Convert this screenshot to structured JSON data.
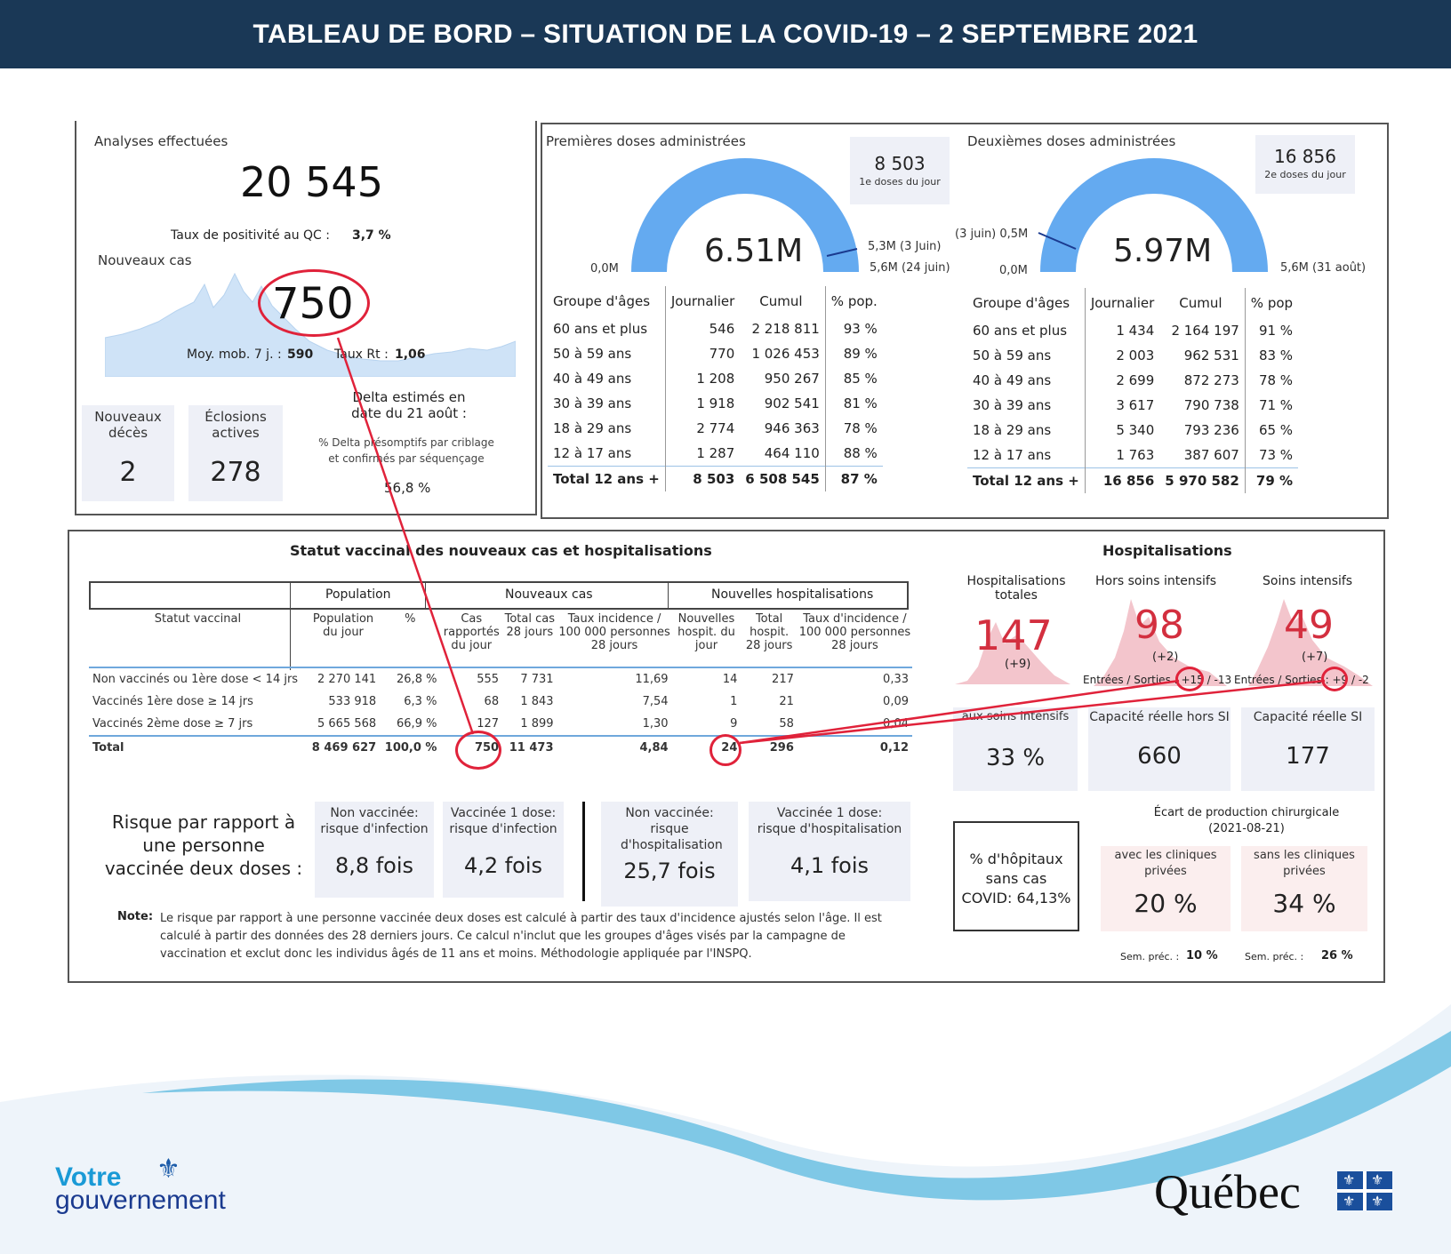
{
  "header": {
    "title": "TABLEAU DE BORD – SITUATION DE LA COVID-19 – 2 SEPTEMBRE 2021"
  },
  "colors": {
    "header_bg": "#1a3856",
    "gauge_blue": "#64aaf0",
    "alert_red": "#d32f3f",
    "annot_red": "#e0223a"
  },
  "analyses": {
    "title": "Analyses effectuées",
    "value": "20 545",
    "positivity_label": "Taux de positivité au QC :",
    "positivity_value": "3,7 %",
    "new_cases_label": "Nouveaux cas",
    "new_cases_value": "750",
    "mob_label": "Moy. mob. 7 j. :",
    "mob_value": "590",
    "rt_label": "Taux Rt :",
    "rt_value": "1,06",
    "deaths_label": "Nouveaux décès",
    "deaths_value": "2",
    "outbreaks_label": "Éclosions actives",
    "outbreaks_value": "278",
    "delta_title": "Delta estimés en date du 21 août :",
    "delta_sub": "% Delta présomptifs par criblage et confirmés par séquençage",
    "delta_value": "56,8 %"
  },
  "dose1": {
    "title": "Premières doses administrées",
    "total": "6.51M",
    "daily": "8 503",
    "daily_label": "1e doses du jour",
    "min_label": "0,0M",
    "marker1": "5,3M (3 Juin)",
    "marker2": "5,6M (24 juin)",
    "fill_fraction": 1.0,
    "columns": [
      "Groupe d'âges",
      "Journalier",
      "Cumul",
      "% pop."
    ],
    "rows": [
      [
        "60 ans et plus",
        "546",
        "2 218 811",
        "93 %"
      ],
      [
        "50 à 59 ans",
        "770",
        "1 026 453",
        "89 %"
      ],
      [
        "40 à 49 ans",
        "1 208",
        "950 267",
        "85 %"
      ],
      [
        "30 à 39 ans",
        "1 918",
        "902 541",
        "81 %"
      ],
      [
        "18 à 29 ans",
        "2 774",
        "946 363",
        "78 %"
      ],
      [
        "12 à 17 ans",
        "1 287",
        "464 110",
        "88 %"
      ]
    ],
    "total_row": [
      "Total 12 ans +",
      "8 503",
      "6 508 545",
      "87 %"
    ]
  },
  "dose2": {
    "title": "Deuxièmes doses administrées",
    "total": "5.97M",
    "daily": "16 856",
    "daily_label": "2e doses du jour",
    "min_label": "0,0M",
    "marker1": "(3 juin)  0,5M",
    "marker2": "5,6M (31 août)",
    "columns": [
      "Groupe d'âges",
      "Journalier",
      "Cumul",
      "% pop"
    ],
    "rows": [
      [
        "60 ans et plus",
        "1 434",
        "2 164 197",
        "91 %"
      ],
      [
        "50 à 59 ans",
        "2 003",
        "962 531",
        "83 %"
      ],
      [
        "40 à 49 ans",
        "2 699",
        "872 273",
        "78 %"
      ],
      [
        "30 à 39 ans",
        "3 617",
        "790 738",
        "71 %"
      ],
      [
        "18 à 29 ans",
        "5 340",
        "793 236",
        "65 %"
      ],
      [
        "12 à 17 ans",
        "1 763",
        "387 607",
        "73 %"
      ]
    ],
    "total_row": [
      "Total 12 ans +",
      "16 856",
      "5 970 582",
      "79 %"
    ]
  },
  "status": {
    "title": "Statut vaccinal des nouveaux cas et hospitalisations",
    "group_headers": [
      "Population",
      "Nouveaux cas",
      "Nouvelles hospitalisations"
    ],
    "columns": [
      "Statut vaccinal",
      "Population du jour",
      "%",
      "Cas rapportés du jour",
      "Total cas 28 jours",
      "Taux incidence / 100 000 personnes 28 jours",
      "Nouvelles hospit. du jour",
      "Total hospit. 28 jours",
      "Taux d'incidence / 100 000 personnes 28 jours"
    ],
    "rows": [
      [
        "Non vaccinés ou 1ère dose < 14 jrs",
        "2 270 141",
        "26,8 %",
        "555",
        "7 731",
        "11,69",
        "14",
        "217",
        "0,33"
      ],
      [
        "Vaccinés 1ère dose ≥ 14 jrs",
        "533 918",
        "6,3 %",
        "68",
        "1 843",
        "7,54",
        "1",
        "21",
        "0,09"
      ],
      [
        "Vaccinés 2ème dose ≥ 7 jrs",
        "5 665 568",
        "66,9 %",
        "127",
        "1 899",
        "1,30",
        "9",
        "58",
        "0,04"
      ]
    ],
    "total_row": [
      "Total",
      "8 469 627",
      "100,0 %",
      "750",
      "11 473",
      "4,84",
      "24",
      "296",
      "0,12"
    ]
  },
  "risk": {
    "title": "Risque par rapport à une personne vaccinée deux doses :",
    "cards": [
      {
        "label": "Non vaccinée: risque d'infection",
        "value": "8,8 fois"
      },
      {
        "label": "Vaccinée 1 dose: risque d'infection",
        "value": "4,2 fois"
      },
      {
        "label": "Non vaccinée: risque d'hospitalisation",
        "value": "25,7 fois"
      },
      {
        "label": "Vaccinée 1 dose: risque d'hospitalisation",
        "value": "4,1 fois"
      }
    ],
    "note_label": "Note:",
    "note": "Le risque par rapport à une personne vaccinée deux doses est calculé à partir des taux d'incidence ajustés selon l'âge. Il est calculé à partir des données des 28 derniers jours. Ce calcul n'inclut que les groupes d'âges visés par la campagne de vaccination et exclut donc les individus âgés de 11 ans et moins. Méthodologie appliquée par l'INSPQ."
  },
  "hosp": {
    "title": "Hospitalisations",
    "total_label": "Hospitalisations totales",
    "total_value": "147",
    "total_delta": "(+9)",
    "hors_label": "Hors soins intensifs",
    "hors_value": "98",
    "hors_delta": "(+2)",
    "hors_flow": "Entrées / Sorties : +15 / -13",
    "si_label": "Soins intensifs",
    "si_value": "49",
    "si_delta": "(+7)",
    "si_flow": "Entrées / Sorties : +9 / -2",
    "aux_label": "aux soins intensifs",
    "aux_value": "33 %",
    "cap_hors_label": "Capacité réelle hors SI",
    "cap_hors_value": "660",
    "cap_si_label": "Capacité réelle SI",
    "cap_si_value": "177",
    "hopitaux_label": "% d'hôpitaux sans cas COVID: 64,13%",
    "ecart_title": "Écart de production chirurgicale (2021-08-21)",
    "avec_label": "avec les cliniques privées",
    "avec_value": "20 %",
    "sans_label": "sans les cliniques privées",
    "sans_value": "34 %",
    "sem_label": "Sem. préc. :",
    "sem_avec": "10 %",
    "sem_sans": "26 %"
  },
  "footer": {
    "votre": "Votre",
    "gouvernement": "gouvernement",
    "quebec": "Québec"
  }
}
